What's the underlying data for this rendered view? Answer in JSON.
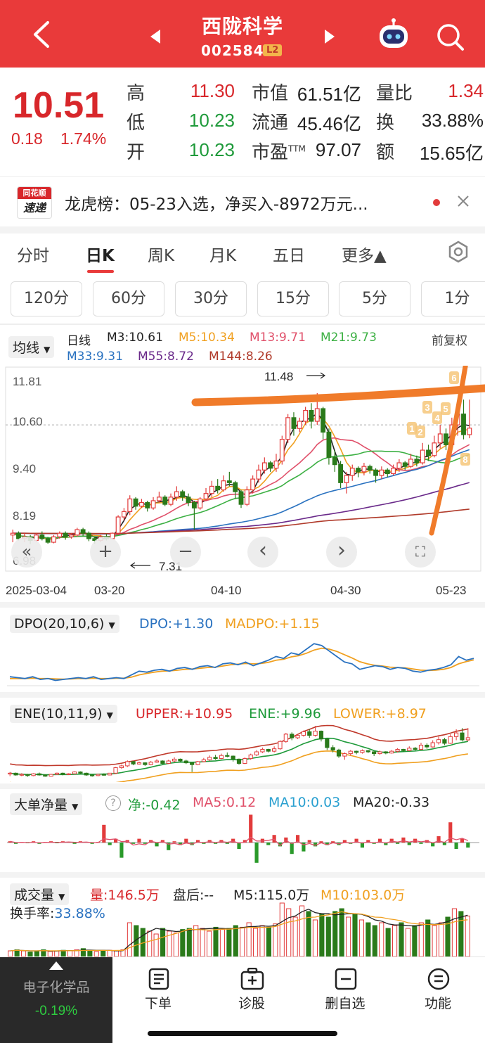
{
  "header": {
    "title": "西陇科学",
    "code": "002584",
    "level_badge": "L2"
  },
  "quote": {
    "price": "10.51",
    "change": "0.18",
    "change_pct": "1.74%",
    "high_label": "高",
    "high": "11.30",
    "low_label": "低",
    "low": "10.23",
    "open_label": "开",
    "open": "10.23",
    "mktcap_label": "市值",
    "mktcap": "61.51亿",
    "float_label": "流通",
    "float": "45.46亿",
    "pe_label": "市盈",
    "pe_sup": "TTM",
    "pe": "97.07",
    "volratio_label": "量比",
    "volratio": "1.34",
    "turnover_label": "换",
    "turnover": "33.88%",
    "amount_label": "额",
    "amount": "15.65亿"
  },
  "news": {
    "logo_top": "同花顺",
    "logo_bottom": "速递",
    "text": "龙虎榜：05-23入选，净买入-8972万元..."
  },
  "period_tabs": [
    "分时",
    "日K",
    "周K",
    "月K",
    "五日",
    "更多▲"
  ],
  "minute_buttons": [
    "120分",
    "60分",
    "30分",
    "15分",
    "5分",
    "1分"
  ],
  "ma_bar": {
    "selector": "均线",
    "type": "日线",
    "m3": "M3:10.61",
    "m5": "M5:10.34",
    "m13": "M13:9.71",
    "m21": "M21:9.73",
    "m33": "M33:9.31",
    "m55": "M55:8.72",
    "m144": "M144:8.26",
    "adjust": "前复权"
  },
  "colors": {
    "m3": "#222222",
    "m5": "#f0a020",
    "m13": "#e0506a",
    "m21": "#3cb043",
    "m33": "#2a72c0",
    "m55": "#6a2a8a",
    "m144": "#b03a2a",
    "up": "#e23b3b",
    "down": "#2a7a1a",
    "accent": "#e93a3a",
    "annotation": "#f07b2a"
  },
  "chart_data": {
    "type": "candlestick",
    "y_axis_labels": [
      "11.81",
      "10.60",
      "9.40",
      "8.19",
      "6.98"
    ],
    "x_axis_labels": [
      "2025-03-04",
      "03-20",
      "04-10",
      "04-30",
      "05-23"
    ],
    "high_marker": "11.48",
    "low_marker": "7.31",
    "candles": [
      [
        7.55,
        7.6,
        7.35,
        7.7
      ],
      [
        7.6,
        7.45,
        7.4,
        7.65
      ],
      [
        7.45,
        7.5,
        7.35,
        7.6
      ],
      [
        7.5,
        7.4,
        7.3,
        7.55
      ],
      [
        7.4,
        7.55,
        7.35,
        7.6
      ],
      [
        7.55,
        7.45,
        7.4,
        7.65
      ],
      [
        7.45,
        7.35,
        7.31,
        7.5
      ],
      [
        7.35,
        7.5,
        7.32,
        7.55
      ],
      [
        7.5,
        7.6,
        7.45,
        7.65
      ],
      [
        7.6,
        7.5,
        7.42,
        7.65
      ],
      [
        7.5,
        7.55,
        7.45,
        7.6
      ],
      [
        7.55,
        7.7,
        7.5,
        7.75
      ],
      [
        7.7,
        7.6,
        7.52,
        7.75
      ],
      [
        7.6,
        7.45,
        7.38,
        7.65
      ],
      [
        7.45,
        7.4,
        7.31,
        7.5
      ],
      [
        7.4,
        7.5,
        7.35,
        7.55
      ],
      [
        7.5,
        7.45,
        7.4,
        7.58
      ],
      [
        7.45,
        7.6,
        7.42,
        7.62
      ],
      [
        7.6,
        8.05,
        7.55,
        8.1
      ],
      [
        8.05,
        8.2,
        7.95,
        8.3
      ],
      [
        8.2,
        8.55,
        8.1,
        8.65
      ],
      [
        8.55,
        8.35,
        8.25,
        8.6
      ],
      [
        8.35,
        8.45,
        8.3,
        8.55
      ],
      [
        8.45,
        8.3,
        8.2,
        8.5
      ],
      [
        8.3,
        8.5,
        8.25,
        8.6
      ],
      [
        8.5,
        8.6,
        8.45,
        8.75
      ],
      [
        8.6,
        8.4,
        8.35,
        8.65
      ],
      [
        8.4,
        8.6,
        8.35,
        8.7
      ],
      [
        8.6,
        8.75,
        8.5,
        8.9
      ],
      [
        8.75,
        8.6,
        8.5,
        8.8
      ],
      [
        8.6,
        8.45,
        8.35,
        8.7
      ],
      [
        8.45,
        8.3,
        7.7,
        8.5
      ],
      [
        8.3,
        8.55,
        8.25,
        8.6
      ],
      [
        8.55,
        8.7,
        8.5,
        8.85
      ],
      [
        8.7,
        8.9,
        8.6,
        9.05
      ],
      [
        8.9,
        8.8,
        8.7,
        9.1
      ],
      [
        8.8,
        9.05,
        8.75,
        9.2
      ],
      [
        9.05,
        9.0,
        8.9,
        9.3
      ],
      [
        9.0,
        8.75,
        8.55,
        9.05
      ],
      [
        8.75,
        8.4,
        8.3,
        8.8
      ],
      [
        8.4,
        8.8,
        8.35,
        8.9
      ],
      [
        8.8,
        9.1,
        8.7,
        9.2
      ],
      [
        9.1,
        9.35,
        9.0,
        9.5
      ],
      [
        9.35,
        9.55,
        9.25,
        9.7
      ],
      [
        9.55,
        9.4,
        9.3,
        9.6
      ],
      [
        9.4,
        9.6,
        9.3,
        9.8
      ],
      [
        9.6,
        10.2,
        9.5,
        10.3
      ],
      [
        10.2,
        10.8,
        10.1,
        10.9
      ],
      [
        10.8,
        10.5,
        10.3,
        10.95
      ],
      [
        10.5,
        10.7,
        10.4,
        10.8
      ],
      [
        10.7,
        11.0,
        10.6,
        11.1
      ],
      [
        11.0,
        10.7,
        10.5,
        11.2
      ],
      [
        10.7,
        11.05,
        10.6,
        11.48
      ],
      [
        11.05,
        10.4,
        10.2,
        11.1
      ],
      [
        10.4,
        9.7,
        9.5,
        10.5
      ],
      [
        9.7,
        9.5,
        9.3,
        9.9
      ],
      [
        9.5,
        9.0,
        8.85,
        9.6
      ],
      [
        9.0,
        9.2,
        8.7,
        9.3
      ],
      [
        9.2,
        9.4,
        9.05,
        9.5
      ],
      [
        9.4,
        9.3,
        9.15,
        9.45
      ],
      [
        9.3,
        9.45,
        9.2,
        9.55
      ],
      [
        9.45,
        9.35,
        9.25,
        9.5
      ],
      [
        9.35,
        9.2,
        9.0,
        9.4
      ],
      [
        9.2,
        9.35,
        9.1,
        9.45
      ],
      [
        9.35,
        9.25,
        9.15,
        9.4
      ],
      [
        9.25,
        9.4,
        9.2,
        9.5
      ],
      [
        9.4,
        9.55,
        9.3,
        9.65
      ],
      [
        9.55,
        9.45,
        9.35,
        9.6
      ],
      [
        9.45,
        9.65,
        9.4,
        9.8
      ],
      [
        9.65,
        9.55,
        9.45,
        9.75
      ],
      [
        9.55,
        9.9,
        9.5,
        10.1
      ],
      [
        9.9,
        9.75,
        9.6,
        10.05
      ],
      [
        9.75,
        10.1,
        9.7,
        10.3
      ],
      [
        10.1,
        10.35,
        9.95,
        10.6
      ],
      [
        10.35,
        10.05,
        9.9,
        10.5
      ],
      [
        10.05,
        10.6,
        10.0,
        10.8
      ],
      [
        10.6,
        10.9,
        10.3,
        11.2
      ],
      [
        10.9,
        10.33,
        10.2,
        11.3
      ],
      [
        10.33,
        10.51,
        10.23,
        11.3
      ]
    ],
    "marker_labels": [
      "1",
      "2",
      "3",
      "4",
      "5",
      "6",
      "8"
    ]
  },
  "nav_controls": [
    "«",
    "+",
    "−",
    "‹",
    "›",
    "⛶"
  ],
  "dpo": {
    "selector": "DPO(20,10,6)",
    "dpo": "DPO:+1.30",
    "madpo": "MADPO:+1.15",
    "dpo_values": [
      -0.2,
      -0.25,
      -0.3,
      -0.2,
      -0.35,
      -0.3,
      -0.4,
      -0.35,
      -0.3,
      -0.25,
      -0.3,
      -0.2,
      -0.35,
      -0.3,
      -0.25,
      -0.3,
      -0.1,
      0.1,
      0.05,
      0.15,
      0.2,
      0.1,
      0.25,
      0.3,
      0.2,
      0.35,
      0.4,
      0.3,
      0.5,
      0.55,
      0.45,
      0.6,
      0.4,
      0.55,
      0.7,
      0.9,
      0.8,
      1.1,
      1.0,
      1.3,
      1.6,
      1.5,
      1.2,
      0.9,
      0.6,
      0.5,
      0.2,
      0.3,
      0.4,
      0.35,
      0.2,
      0.3,
      0.25,
      0.1,
      0.05,
      0.15,
      0.2,
      0.3,
      0.45,
      0.9,
      0.7,
      0.8
    ],
    "madpo_values": [
      -0.3,
      -0.3,
      -0.3,
      -0.28,
      -0.3,
      -0.3,
      -0.32,
      -0.33,
      -0.32,
      -0.3,
      -0.3,
      -0.28,
      -0.3,
      -0.3,
      -0.28,
      -0.28,
      -0.22,
      -0.1,
      -0.02,
      0.05,
      0.1,
      0.12,
      0.15,
      0.2,
      0.22,
      0.26,
      0.3,
      0.32,
      0.38,
      0.45,
      0.48,
      0.52,
      0.5,
      0.52,
      0.58,
      0.7,
      0.75,
      0.88,
      0.95,
      1.08,
      1.25,
      1.35,
      1.3,
      1.18,
      1.0,
      0.82,
      0.62,
      0.5,
      0.42,
      0.38,
      0.32,
      0.3,
      0.28,
      0.22,
      0.16,
      0.14,
      0.16,
      0.2,
      0.3,
      0.5,
      0.62,
      0.72
    ]
  },
  "ene": {
    "selector": "ENE(10,11,9)",
    "upper": "UPPER:+10.95",
    "ene": "ENE:+9.96",
    "lower": "LOWER:+8.97"
  },
  "bigorder": {
    "selector": "大单净量",
    "help": "?",
    "net": "净:-0.42",
    "ma5": "MA5:0.12",
    "ma10": "MA10:0.03",
    "ma20": "MA20:-0.33",
    "bars": [
      0.1,
      -0.1,
      0.05,
      -0.05,
      0.1,
      -0.1,
      0.05,
      0.1,
      -0.05,
      0.1,
      0.05,
      -0.1,
      0.1,
      0.05,
      -0.1,
      0.05,
      1.4,
      -0.2,
      0.3,
      -1.2,
      0.2,
      -0.1,
      0.3,
      -0.1,
      0.2,
      -0.3,
      0.2,
      -0.6,
      0.1,
      -0.2,
      0.3,
      -0.2,
      0.2,
      -0.1,
      0.2,
      -0.1,
      0.2,
      -0.1,
      0.3,
      -0.5,
      0.2,
      2.2,
      -1.6,
      0.3,
      -0.2,
      0.6,
      -0.3,
      0.4,
      -0.9,
      0.6,
      -0.7,
      0.2,
      -0.3,
      0.1,
      -0.2,
      0.1,
      -0.2,
      0.2,
      -0.1,
      0.3,
      -0.4,
      0.2,
      -0.1,
      0.3,
      -0.2,
      0.3,
      -0.1,
      0.4,
      -0.2,
      0.3,
      -0.1,
      0.2,
      -0.3,
      0.5,
      -0.2,
      1.6,
      -0.5,
      0.3,
      -0.4
    ]
  },
  "volume": {
    "selector": "成交量",
    "vol": "量:146.5万",
    "after": "盘后:--",
    "m5": "M5:115.0万",
    "m10": "M10:103.0万",
    "turnover_label": "换手率:",
    "turnover": "33.88%",
    "bars": [
      0.1,
      0.12,
      0.1,
      0.08,
      0.1,
      0.12,
      0.09,
      0.1,
      0.11,
      0.1,
      0.12,
      0.14,
      0.1,
      0.09,
      0.1,
      0.11,
      0.1,
      0.12,
      0.6,
      0.55,
      0.5,
      0.45,
      0.4,
      0.5,
      0.45,
      0.42,
      0.48,
      0.5,
      0.55,
      0.5,
      0.45,
      0.52,
      0.48,
      0.5,
      0.55,
      0.52,
      0.6,
      0.5,
      0.55,
      0.52,
      0.58,
      0.95,
      0.85,
      0.7,
      0.9,
      0.8,
      0.65,
      0.75,
      0.7,
      0.8,
      0.85,
      0.7,
      0.75,
      0.65,
      0.6,
      0.55,
      0.6,
      0.5,
      0.55,
      0.6,
      0.5,
      0.55,
      0.6,
      0.65,
      0.55,
      0.6,
      0.7,
      0.85,
      0.8,
      0.72
    ]
  },
  "footer": {
    "sector_name": "电子化学品",
    "sector_change": "-0.19%",
    "items": [
      "下单",
      "诊股",
      "删自选",
      "功能"
    ]
  }
}
